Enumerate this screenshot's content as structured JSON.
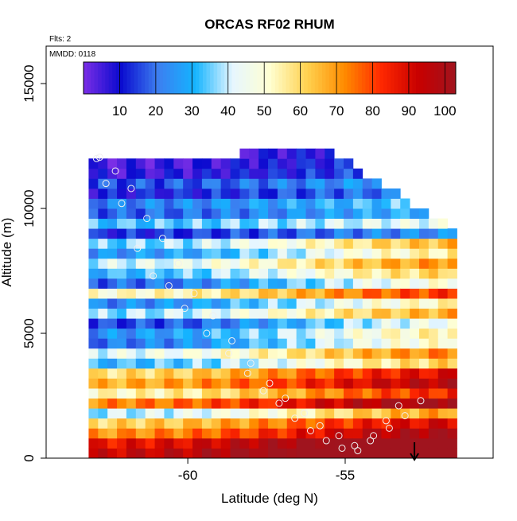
{
  "figure": {
    "title": "ORCAS RF02 RHUM",
    "flights_note": "Flts: 2",
    "date_note": "MMDD: 0118"
  },
  "chart_data": {
    "type": "heatmap",
    "title": "ORCAS RF02 RHUM",
    "xlabel": "Latitude (deg N)",
    "ylabel": "Altitude (m)",
    "xlim": [
      -64.5,
      -50.3
    ],
    "ylim": [
      0,
      16500
    ],
    "x_ticks": [
      -60,
      -55
    ],
    "y_ticks": [
      0,
      5000,
      10000,
      15000
    ],
    "x_tick_labels": [
      "-60",
      "-55"
    ],
    "y_tick_labels": [
      "0",
      "5000",
      "10000",
      "15000"
    ],
    "colorbar": {
      "range": [
        0,
        103
      ],
      "ticks": [
        10,
        20,
        30,
        40,
        50,
        60,
        70,
        80,
        90,
        100
      ],
      "tick_labels": [
        "10",
        "20",
        "30",
        "40",
        "50",
        "60",
        "70",
        "80",
        "90",
        "100"
      ],
      "colors": [
        "#7a2ee6",
        "#0a0acf",
        "#3c7ef0",
        "#14b4ff",
        "#e6f6ff",
        "#ffffd2",
        "#ffd250",
        "#ff8c00",
        "#ff2800",
        "#c80000",
        "#a0141e"
      ]
    },
    "lat_bins": [
      -63.0,
      -62.7,
      -62.4,
      -62.1,
      -61.8,
      -61.5,
      -61.2,
      -60.9,
      -60.6,
      -60.3,
      -60.0,
      -59.7,
      -59.4,
      -59.1,
      -58.8,
      -58.5,
      -58.2,
      -57.9,
      -57.6,
      -57.3,
      -57.0,
      -56.7,
      -56.4,
      -56.1,
      -55.8,
      -55.5,
      -55.2,
      -54.9,
      -54.6,
      -54.3,
      -54.0,
      -53.7,
      -53.4,
      -53.1,
      -52.8,
      -52.5,
      -52.2,
      -51.9,
      -51.6
    ],
    "alt_bins": [
      200,
      600,
      1000,
      1400,
      1800,
      2200,
      2600,
      3000,
      3400,
      3800,
      4200,
      4600,
      5000,
      5400,
      5800,
      6200,
      6600,
      7000,
      7400,
      7800,
      8200,
      8600,
      9000,
      9400,
      9800,
      10200,
      10600,
      11000,
      11400,
      11800,
      12200
    ],
    "rhum_profile": {
      "altitude": [
        200,
        600,
        1000,
        1400,
        1800,
        2200,
        2600,
        3000,
        3400,
        3800,
        4200,
        4600,
        5000,
        5400,
        5800,
        6200,
        6600,
        7000,
        7400,
        7800,
        8200,
        8600,
        9000,
        9400,
        9800,
        10200,
        10600,
        11000,
        11400,
        11800,
        12200
      ],
      "rhum": [
        92,
        86,
        70,
        60,
        38,
        72,
        52,
        66,
        58,
        30,
        42,
        20,
        24,
        14,
        36,
        22,
        50,
        18,
        30,
        40,
        24,
        34,
        12,
        32,
        18,
        22,
        10,
        16,
        6,
        4,
        2
      ]
    },
    "lat_trend": {
      "latitude": [
        -63.0,
        -60.0,
        -57.0,
        -54.0,
        -51.6
      ],
      "delta_rhum": [
        0,
        4,
        14,
        26,
        32
      ]
    },
    "flight_points": {
      "latitude": [
        -62.9,
        -62.6,
        -62.1,
        -61.6,
        -61.1,
        -60.6,
        -60.1,
        -59.4,
        -58.7,
        -58.1,
        -57.6,
        -57.1,
        -56.6,
        -56.1,
        -55.6,
        -55.1,
        -54.6,
        -54.1,
        -53.7,
        -53.3,
        -62.8,
        -62.3,
        -61.8,
        -61.3,
        -60.8,
        -60.3,
        -59.8,
        -59.2,
        -58.6,
        -58.0,
        -57.4,
        -56.9,
        -56.3,
        -55.8,
        -55.2,
        -54.7,
        -54.2,
        -53.6,
        -53.1,
        -52.6
      ],
      "altitude": [
        12000,
        11000,
        10200,
        8400,
        7300,
        6900,
        6000,
        5000,
        4200,
        3400,
        2700,
        2200,
        1600,
        1100,
        700,
        400,
        300,
        900,
        1500,
        2100,
        12050,
        11500,
        10800,
        9600,
        8800,
        7800,
        6600,
        5700,
        4700,
        3800,
        3000,
        2400,
        1800,
        1300,
        900,
        500,
        700,
        1200,
        1700,
        2300
      ]
    },
    "legend_placement": "top",
    "grid": false,
    "arrow_latitude": -52.8
  }
}
